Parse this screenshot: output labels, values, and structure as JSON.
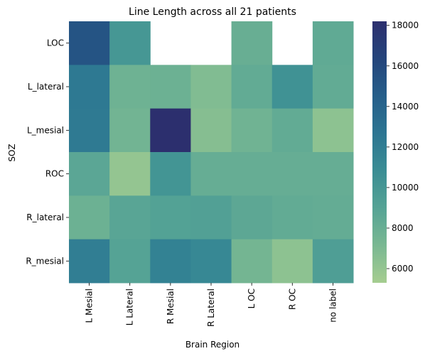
{
  "chart_data": {
    "type": "heatmap",
    "title": "Line Length across all 21 patients",
    "xlabel": "Brain Region",
    "ylabel": "SOZ",
    "x_categories": [
      "L Mesial",
      "L Lateral",
      "R Mesial",
      "R Lateral",
      "L OC",
      "R OC",
      "no label"
    ],
    "y_categories": [
      "LOC",
      "L_lateral",
      "L_mesial",
      "ROC",
      "R_lateral",
      "R_mesial"
    ],
    "values": [
      [
        15200,
        10000,
        null,
        null,
        8000,
        null,
        8400
      ],
      [
        12400,
        7700,
        7800,
        6800,
        8300,
        10400,
        8300
      ],
      [
        12300,
        7500,
        18200,
        6600,
        7600,
        8300,
        6300
      ],
      [
        8700,
        6000,
        10200,
        8100,
        8100,
        8100,
        8100
      ],
      [
        7800,
        8800,
        9100,
        9200,
        8600,
        8300,
        8200
      ],
      [
        12000,
        9000,
        11700,
        11200,
        7400,
        6300,
        9400
      ]
    ],
    "colorbar": {
      "min": 5300,
      "max": 18200,
      "ticks": [
        6000,
        8000,
        10000,
        12000,
        14000,
        16000,
        18000
      ],
      "colormap": "crest",
      "stops": [
        "#a5cd90",
        "#79b892",
        "#55a395",
        "#3a8d94",
        "#2c7592",
        "#255e8a",
        "#24447b",
        "#2c2f6e"
      ]
    }
  }
}
